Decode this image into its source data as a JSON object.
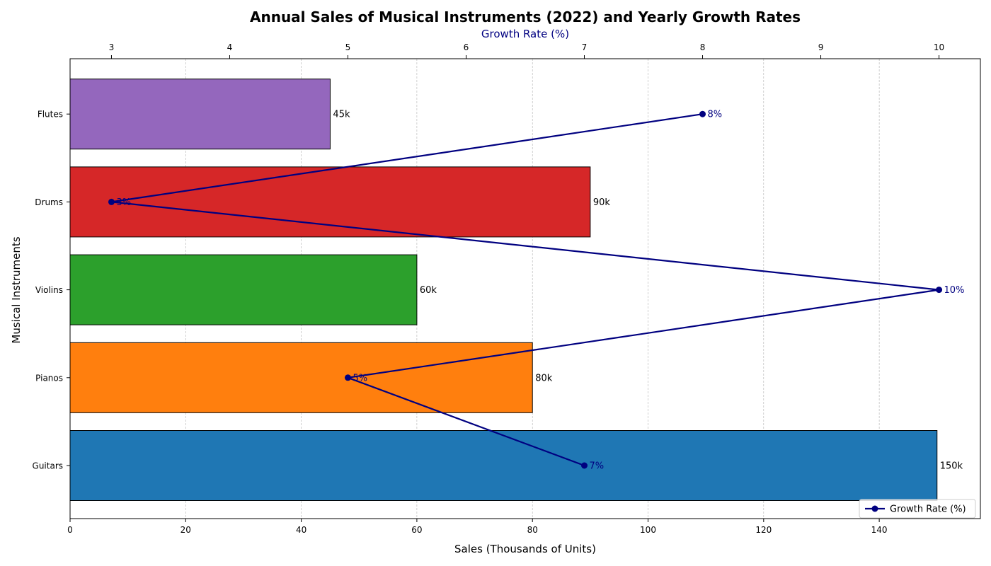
{
  "chart_data": {
    "type": "bar",
    "orientation": "horizontal",
    "title": "Annual Sales of Musical Instruments (2022) and Yearly Growth Rates",
    "xlabel": "Sales (Thousands of Units)",
    "ylabel": "Musical Instruments",
    "x2label": "Growth Rate (%)",
    "categories": [
      "Guitars",
      "Pianos",
      "Violins",
      "Drums",
      "Flutes"
    ],
    "series": [
      {
        "name": "",
        "values": [
          150,
          80,
          60,
          90,
          45
        ],
        "value_labels": [
          "150k",
          "80k",
          "60k",
          "90k",
          "45k"
        ],
        "colors": [
          "#1f77b4",
          "#ff7f0e",
          "#2ca02c",
          "#d62728",
          "#9467bd"
        ]
      },
      {
        "name": "Growth Rate (%)",
        "axis": "top",
        "type": "line",
        "values": [
          7,
          5,
          10,
          3,
          8
        ],
        "value_labels": [
          "7%",
          "5%",
          "10%",
          "3%",
          "8%"
        ],
        "color": "#000080"
      }
    ],
    "xlim": [
      0,
      157.5
    ],
    "xticks": [
      0,
      20,
      40,
      60,
      80,
      100,
      120,
      140
    ],
    "x2lim": [
      2.65,
      10.35
    ],
    "x2ticks": [
      3,
      4,
      5,
      6,
      7,
      8,
      9,
      10
    ],
    "grid": "x-dashed",
    "legend": "bottom-right"
  }
}
